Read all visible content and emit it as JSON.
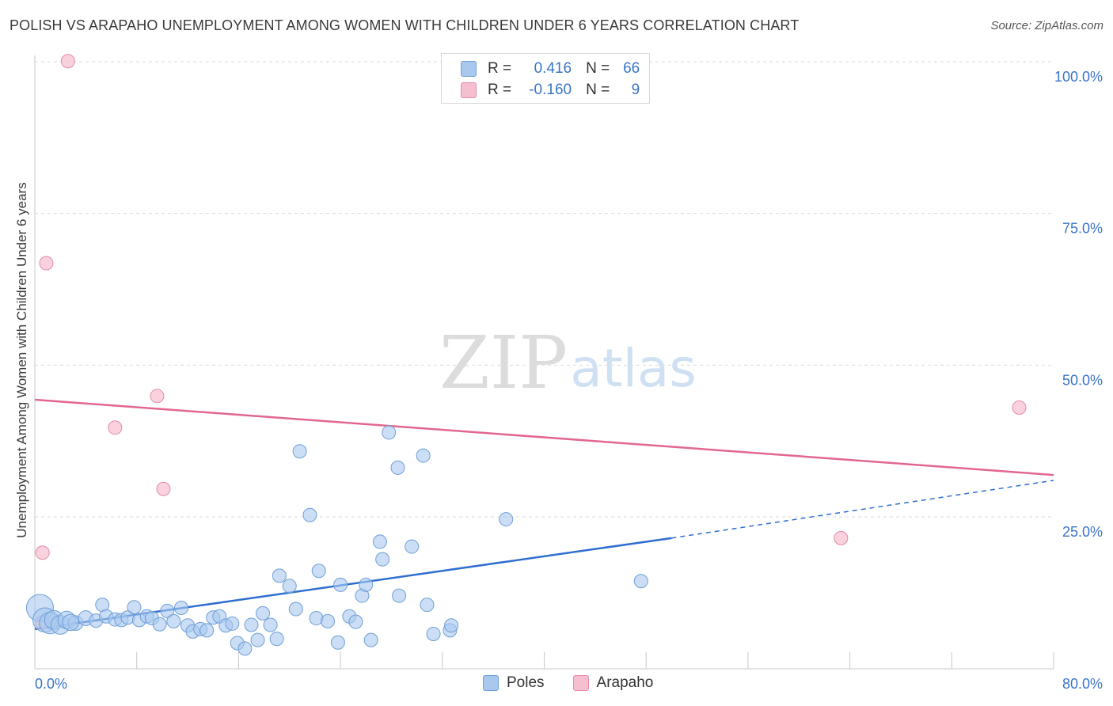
{
  "header": {
    "title": "POLISH VS ARAPAHO UNEMPLOYMENT AMONG WOMEN WITH CHILDREN UNDER 6 YEARS CORRELATION CHART",
    "source": "Source: ZipAtlas.com"
  },
  "legend": {
    "rows": [
      {
        "r_label": "R =",
        "r_value": "0.416",
        "n_label": "N =",
        "n_value": "66"
      },
      {
        "r_label": "R =",
        "r_value": "-0.160",
        "n_label": "N =",
        "n_value": "9"
      }
    ]
  },
  "watermark": {
    "zip": "ZIP",
    "atlas": "atlas"
  },
  "colors": {
    "poles_fill": "#a9c8ee",
    "poles_stroke": "#6e9fd8",
    "poles_line": "#2f6fcf",
    "arapaho_fill": "#f6bfd0",
    "arapaho_stroke": "#e48aa8",
    "arapaho_line": "#e2678f",
    "tick_text": "#3a74c8",
    "grid": "#d9d9d9"
  },
  "chart_data": {
    "type": "scatter",
    "title": "POLISH VS ARAPAHO UNEMPLOYMENT AMONG WOMEN WITH CHILDREN UNDER 6 YEARS CORRELATION CHART",
    "xlabel": "",
    "ylabel": "Unemployment Among Women with Children Under 6 years",
    "xlim": [
      0,
      80
    ],
    "ylim": [
      0,
      102
    ],
    "x_tick_labels": [
      "0.0%",
      "80.0%"
    ],
    "y_ticks": [
      25,
      50,
      75,
      100
    ],
    "y_tick_labels": [
      "25.0%",
      "50.0%",
      "75.0%",
      "100.0%"
    ],
    "grid": true,
    "legend_position": "bottom-center",
    "series": [
      {
        "name": "Poles",
        "R": 0.416,
        "N": 66,
        "trend": {
          "x0": 0,
          "y0": 6.5,
          "x1": 50,
          "y1": 21.5,
          "dashed_to_x": 80,
          "dashed_to_y": 31
        },
        "points": [
          [
            0.4,
            10.0,
            20
          ],
          [
            0.8,
            8.0,
            18
          ],
          [
            1.2,
            7.5,
            16
          ],
          [
            1.5,
            8.0,
            14
          ],
          [
            2.0,
            7.2,
            14
          ],
          [
            2.5,
            8.0,
            13
          ],
          [
            3.2,
            7.5,
            11
          ],
          [
            4.0,
            8.3,
            11
          ],
          [
            4.8,
            7.9,
            10
          ],
          [
            5.3,
            10.5,
            10
          ],
          [
            5.6,
            8.6,
            10
          ],
          [
            6.3,
            8.1,
            10
          ],
          [
            6.8,
            8.0,
            10
          ],
          [
            7.3,
            8.4,
            10
          ],
          [
            7.8,
            10.1,
            10
          ],
          [
            8.2,
            8.0,
            10
          ],
          [
            8.8,
            8.6,
            10
          ],
          [
            9.2,
            8.3,
            10
          ],
          [
            9.8,
            7.3,
            10
          ],
          [
            10.4,
            9.5,
            10
          ],
          [
            10.9,
            7.8,
            10
          ],
          [
            11.5,
            10.0,
            10
          ],
          [
            12.0,
            7.1,
            10
          ],
          [
            12.4,
            6.1,
            10
          ],
          [
            13.0,
            6.5,
            10
          ],
          [
            13.5,
            6.3,
            10
          ],
          [
            14.0,
            8.4,
            10
          ],
          [
            14.5,
            8.6,
            10
          ],
          [
            15.0,
            7.1,
            10
          ],
          [
            15.5,
            7.4,
            10
          ],
          [
            15.9,
            4.2,
            10
          ],
          [
            16.5,
            3.3,
            10
          ],
          [
            17.0,
            7.2,
            10
          ],
          [
            17.5,
            4.7,
            10
          ],
          [
            17.9,
            9.1,
            10
          ],
          [
            18.5,
            7.2,
            10
          ],
          [
            19.0,
            4.9,
            10
          ],
          [
            19.2,
            15.3,
            10
          ],
          [
            20.0,
            13.6,
            10
          ],
          [
            20.5,
            9.8,
            10
          ],
          [
            20.8,
            35.8,
            10
          ],
          [
            21.6,
            25.3,
            10
          ],
          [
            22.1,
            8.3,
            10
          ],
          [
            22.3,
            16.1,
            10
          ],
          [
            23.0,
            7.8,
            10
          ],
          [
            23.8,
            4.3,
            10
          ],
          [
            24.0,
            13.8,
            10
          ],
          [
            24.7,
            8.6,
            10
          ],
          [
            25.2,
            7.7,
            10
          ],
          [
            25.7,
            12.0,
            10
          ],
          [
            26.0,
            13.8,
            10
          ],
          [
            26.4,
            4.7,
            10
          ],
          [
            27.1,
            20.9,
            10
          ],
          [
            27.3,
            18.0,
            10
          ],
          [
            27.8,
            38.9,
            10
          ],
          [
            28.5,
            33.1,
            10
          ],
          [
            28.6,
            12.0,
            10
          ],
          [
            29.6,
            20.1,
            10
          ],
          [
            30.5,
            35.1,
            10
          ],
          [
            30.8,
            10.5,
            10
          ],
          [
            31.3,
            5.7,
            10
          ],
          [
            32.6,
            6.3,
            10
          ],
          [
            32.7,
            7.1,
            10
          ],
          [
            37.0,
            24.6,
            10
          ],
          [
            47.6,
            14.4,
            10
          ],
          [
            2.8,
            7.6,
            12
          ]
        ]
      },
      {
        "name": "Arapaho",
        "R": -0.16,
        "N": 9,
        "trend": {
          "x0": 0,
          "y0": 44.3,
          "x1": 80,
          "y1": 31.9
        },
        "points": [
          [
            0.6,
            7.6,
            10
          ],
          [
            0.6,
            19.1,
            10
          ],
          [
            0.9,
            66.8,
            10
          ],
          [
            2.6,
            100.1,
            10
          ],
          [
            6.3,
            39.7,
            10
          ],
          [
            9.6,
            44.9,
            10
          ],
          [
            10.1,
            29.6,
            10
          ],
          [
            63.3,
            21.5,
            10
          ],
          [
            77.3,
            43.0,
            10
          ]
        ]
      }
    ]
  },
  "bottom_legend": {
    "items": [
      {
        "label": "Poles"
      },
      {
        "label": "Arapaho"
      }
    ]
  }
}
